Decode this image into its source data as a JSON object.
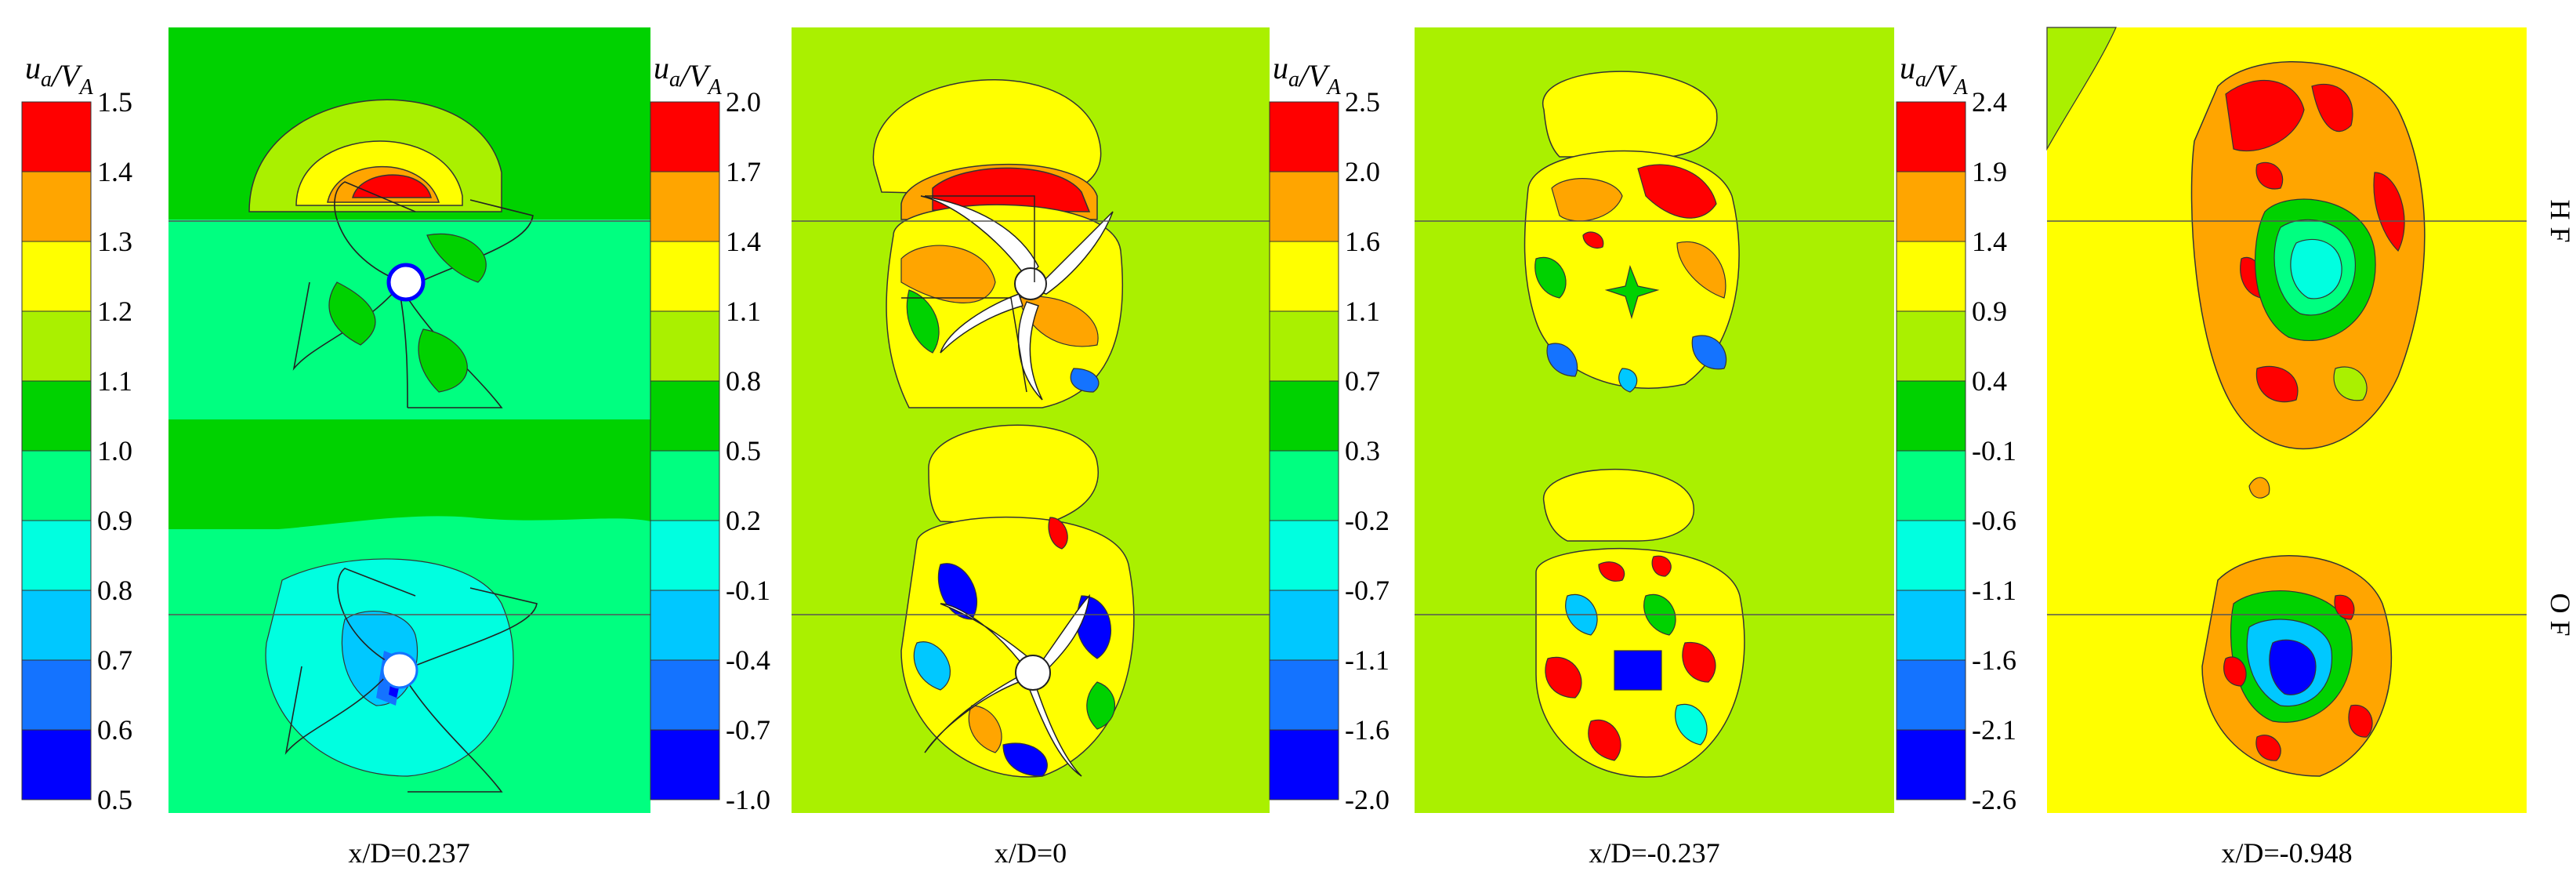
{
  "figure": {
    "row_labels": [
      "H F",
      "O F"
    ]
  },
  "chart_data": [
    {
      "type": "heatmap",
      "title": "",
      "colorbar_label": "u_a/V_A",
      "xlabel": "x/D=0.237",
      "colorbar_ticks": [
        "1.5",
        "1.4",
        "1.3",
        "1.2",
        "1.1",
        "1.0",
        "0.9",
        "0.8",
        "0.7",
        "0.6",
        "0.5"
      ],
      "colorbar_range": [
        0.5,
        1.5
      ],
      "colors": [
        "#0000ff",
        "#1473ff",
        "#00c8ff",
        "#00ffe0",
        "#00ff80",
        "#00d200",
        "#aaf000",
        "#ffff00",
        "#ffa500",
        "#ff0000"
      ]
    },
    {
      "type": "heatmap",
      "title": "",
      "colorbar_label": "u_a/V_A",
      "xlabel": "x/D=0",
      "colorbar_ticks": [
        "2.0",
        "1.7",
        "1.4",
        "1.1",
        "0.8",
        "0.5",
        "0.2",
        "-0.1",
        "-0.4",
        "-0.7",
        "-1.0"
      ],
      "colorbar_range": [
        -1.0,
        2.0
      ],
      "colors": [
        "#0000ff",
        "#1473ff",
        "#00c8ff",
        "#00ffe0",
        "#00ff80",
        "#00d200",
        "#aaf000",
        "#ffff00",
        "#ffa500",
        "#ff0000"
      ]
    },
    {
      "type": "heatmap",
      "title": "",
      "colorbar_label": "u_a/V_A",
      "xlabel": "x/D=-0.237",
      "colorbar_ticks": [
        "2.5",
        "2.0",
        "1.6",
        "1.1",
        "0.7",
        "0.3",
        "-0.2",
        "-0.7",
        "-1.1",
        "-1.6",
        "-2.0"
      ],
      "colorbar_range": [
        -2.0,
        2.5
      ],
      "colors": [
        "#0000ff",
        "#1473ff",
        "#00c8ff",
        "#00ffe0",
        "#00ff80",
        "#00d200",
        "#aaf000",
        "#ffff00",
        "#ffa500",
        "#ff0000"
      ]
    },
    {
      "type": "heatmap",
      "title": "",
      "colorbar_label": "u_a/V_A",
      "xlabel": "x/D=-0.948",
      "colorbar_ticks": [
        "2.4",
        "1.9",
        "1.4",
        "0.9",
        "0.4",
        "-0.1",
        "-0.6",
        "-1.1",
        "-1.6",
        "-2.1",
        "-2.6"
      ],
      "colorbar_range": [
        -2.6,
        2.4
      ],
      "colors": [
        "#0000ff",
        "#1473ff",
        "#00c8ff",
        "#00ffe0",
        "#00ff80",
        "#00d200",
        "#aaf000",
        "#ffff00",
        "#ffa500",
        "#ff0000"
      ]
    }
  ]
}
